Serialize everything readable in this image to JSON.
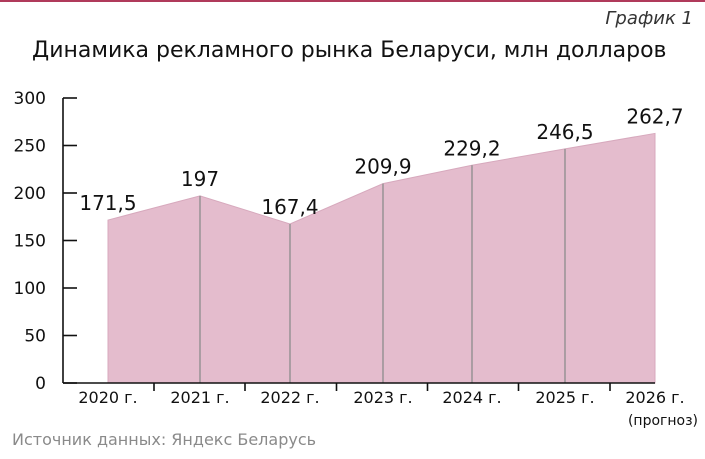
{
  "header": {
    "graph_label": "График 1",
    "title": "Динамика рекламного рынка Беларуси, млн долларов"
  },
  "footer": {
    "source": "Источник данных: Яндекс Беларусь"
  },
  "colors": {
    "area_fill": "#e4bccd",
    "area_line": "#d7a9bd",
    "grid_line": "#8c8c8c",
    "axis": "#111111",
    "accent_rule": "#b03a5b"
  },
  "chart_data": {
    "type": "area",
    "title": "Динамика рекламного рынка Беларуси, млн долларов",
    "xlabel": "",
    "ylabel": "",
    "categories": [
      "2020 г.",
      "2021 г.",
      "2022 г.",
      "2023 г.",
      "2024 г.",
      "2025 г.",
      "2026 г."
    ],
    "category_notes": [
      "",
      "",
      "",
      "",
      "",
      "",
      "(прогноз)"
    ],
    "values": [
      171.5,
      197,
      167.4,
      209.9,
      229.2,
      246.5,
      262.7
    ],
    "value_labels": [
      "171,5",
      "197",
      "167,4",
      "209,9",
      "229,2",
      "246,5",
      "262,7"
    ],
    "ylim": [
      0,
      300
    ],
    "yticks": [
      0,
      50,
      100,
      150,
      200,
      250,
      300
    ],
    "grid": false,
    "legend": "none"
  }
}
